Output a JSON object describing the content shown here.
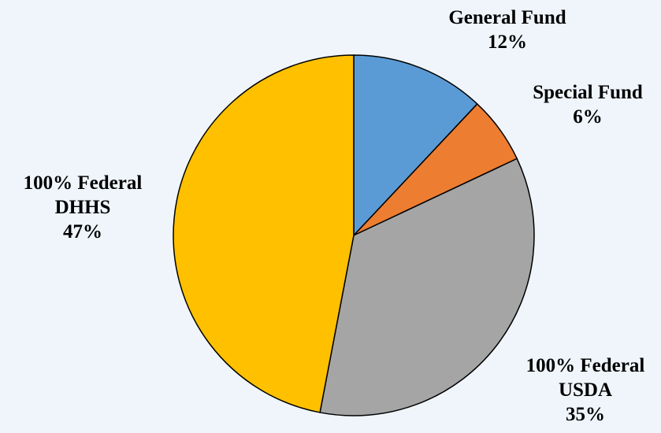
{
  "colors": {
    "background": "#eff5fb",
    "slice_stroke": "#000000"
  },
  "chart_data": {
    "type": "pie",
    "title": "",
    "slices": [
      {
        "label_lines": [
          "General Fund"
        ],
        "percent_label": "12%",
        "value": 12,
        "color": "#5b9bd5"
      },
      {
        "label_lines": [
          "Special Fund"
        ],
        "percent_label": "6%",
        "value": 6,
        "color": "#ed7d31"
      },
      {
        "label_lines": [
          "100% Federal",
          "USDA"
        ],
        "percent_label": "35%",
        "value": 35,
        "color": "#a5a5a5"
      },
      {
        "label_lines": [
          "100% Federal",
          "DHHS"
        ],
        "percent_label": "47%",
        "value": 47,
        "color": "#ffc000"
      }
    ],
    "start_angle": "12 o'clock",
    "direction": "clockwise",
    "legend": "none",
    "labels": "outside"
  }
}
